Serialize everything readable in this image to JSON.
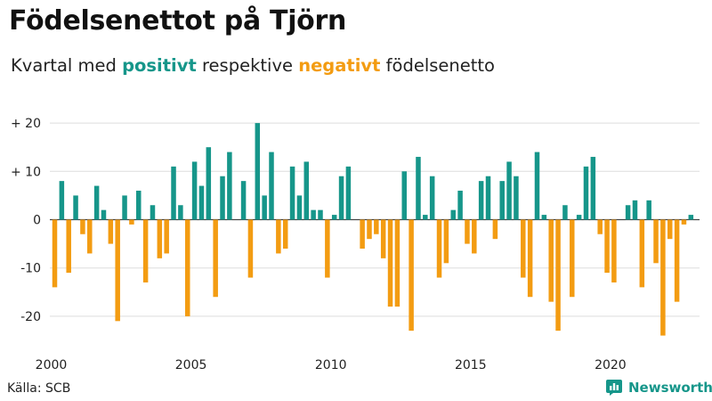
{
  "title": "Födelsenettot på Tjörn",
  "subtitle": {
    "prefix": "Kvartal med ",
    "positive_word": "positivt",
    "middle": " respektive ",
    "negative_word": "negativt",
    "suffix": " födelsenetto"
  },
  "source": "Källa: SCB",
  "brand": {
    "name": "Newsworthy",
    "icon": "bar-chart-logo-icon"
  },
  "colors": {
    "positive": "#16968a",
    "negative": "#f39c12",
    "grid": "#dddddd",
    "baseline": "#444444"
  },
  "chart_data": {
    "type": "bar",
    "xlabel": "",
    "ylabel": "",
    "ylim": [
      -25,
      21
    ],
    "y_ticks": [
      {
        "value": 20,
        "label": "+ 20"
      },
      {
        "value": 10,
        "label": "+ 10"
      },
      {
        "value": 0,
        "label": "0"
      },
      {
        "value": -10,
        "label": "-10"
      },
      {
        "value": -20,
        "label": "-20"
      }
    ],
    "x_ticks": [
      {
        "value": 2000,
        "label": "2000"
      },
      {
        "value": 2005,
        "label": "2005"
      },
      {
        "value": 2010,
        "label": "2010"
      },
      {
        "value": 2015,
        "label": "2015"
      },
      {
        "value": 2020,
        "label": "2020"
      }
    ],
    "period_start": "2000 Q1",
    "period_end": "2023 Q1",
    "categories": [
      "2000 Q1",
      "2000 Q2",
      "2000 Q3",
      "2000 Q4",
      "2001 Q1",
      "2001 Q2",
      "2001 Q3",
      "2001 Q4",
      "2002 Q1",
      "2002 Q2",
      "2002 Q3",
      "2002 Q4",
      "2003 Q1",
      "2003 Q2",
      "2003 Q3",
      "2003 Q4",
      "2004 Q1",
      "2004 Q2",
      "2004 Q3",
      "2004 Q4",
      "2005 Q1",
      "2005 Q2",
      "2005 Q3",
      "2005 Q4",
      "2006 Q1",
      "2006 Q2",
      "2006 Q3",
      "2006 Q4",
      "2007 Q1",
      "2007 Q2",
      "2007 Q3",
      "2007 Q4",
      "2008 Q1",
      "2008 Q2",
      "2008 Q3",
      "2008 Q4",
      "2009 Q1",
      "2009 Q2",
      "2009 Q3",
      "2009 Q4",
      "2010 Q1",
      "2010 Q2",
      "2010 Q3",
      "2010 Q4",
      "2011 Q1",
      "2011 Q2",
      "2011 Q3",
      "2011 Q4",
      "2012 Q1",
      "2012 Q2",
      "2012 Q3",
      "2012 Q4",
      "2013 Q1",
      "2013 Q2",
      "2013 Q3",
      "2013 Q4",
      "2014 Q1",
      "2014 Q2",
      "2014 Q3",
      "2014 Q4",
      "2015 Q1",
      "2015 Q2",
      "2015 Q3",
      "2015 Q4",
      "2016 Q1",
      "2016 Q2",
      "2016 Q3",
      "2016 Q4",
      "2017 Q1",
      "2017 Q2",
      "2017 Q3",
      "2017 Q4",
      "2018 Q1",
      "2018 Q2",
      "2018 Q3",
      "2018 Q4",
      "2019 Q1",
      "2019 Q2",
      "2019 Q3",
      "2019 Q4",
      "2020 Q1",
      "2020 Q2",
      "2020 Q3",
      "2020 Q4",
      "2021 Q1",
      "2021 Q2",
      "2021 Q3",
      "2021 Q4",
      "2022 Q1",
      "2022 Q2",
      "2022 Q3",
      "2022 Q4",
      "2023 Q1"
    ],
    "values": [
      -14,
      8,
      -11,
      5,
      -3,
      -7,
      7,
      2,
      -5,
      -21,
      5,
      -1,
      6,
      -13,
      3,
      -8,
      -7,
      11,
      3,
      -20,
      12,
      7,
      15,
      -16,
      9,
      14,
      0,
      8,
      -12,
      20,
      5,
      14,
      -7,
      -6,
      11,
      5,
      12,
      2,
      2,
      -12,
      1,
      9,
      11,
      0,
      -6,
      -4,
      -3,
      -8,
      -18,
      -18,
      10,
      -23,
      13,
      1,
      9,
      -12,
      -9,
      2,
      6,
      -5,
      -7,
      8,
      9,
      -4,
      8,
      12,
      9,
      -12,
      -16,
      14,
      1,
      -17,
      -23,
      3,
      -16,
      1,
      11,
      13,
      -3,
      -11,
      -13,
      0,
      3,
      4,
      -14,
      4,
      -9,
      -24,
      -4,
      -17,
      -1,
      1,
      0
    ]
  }
}
